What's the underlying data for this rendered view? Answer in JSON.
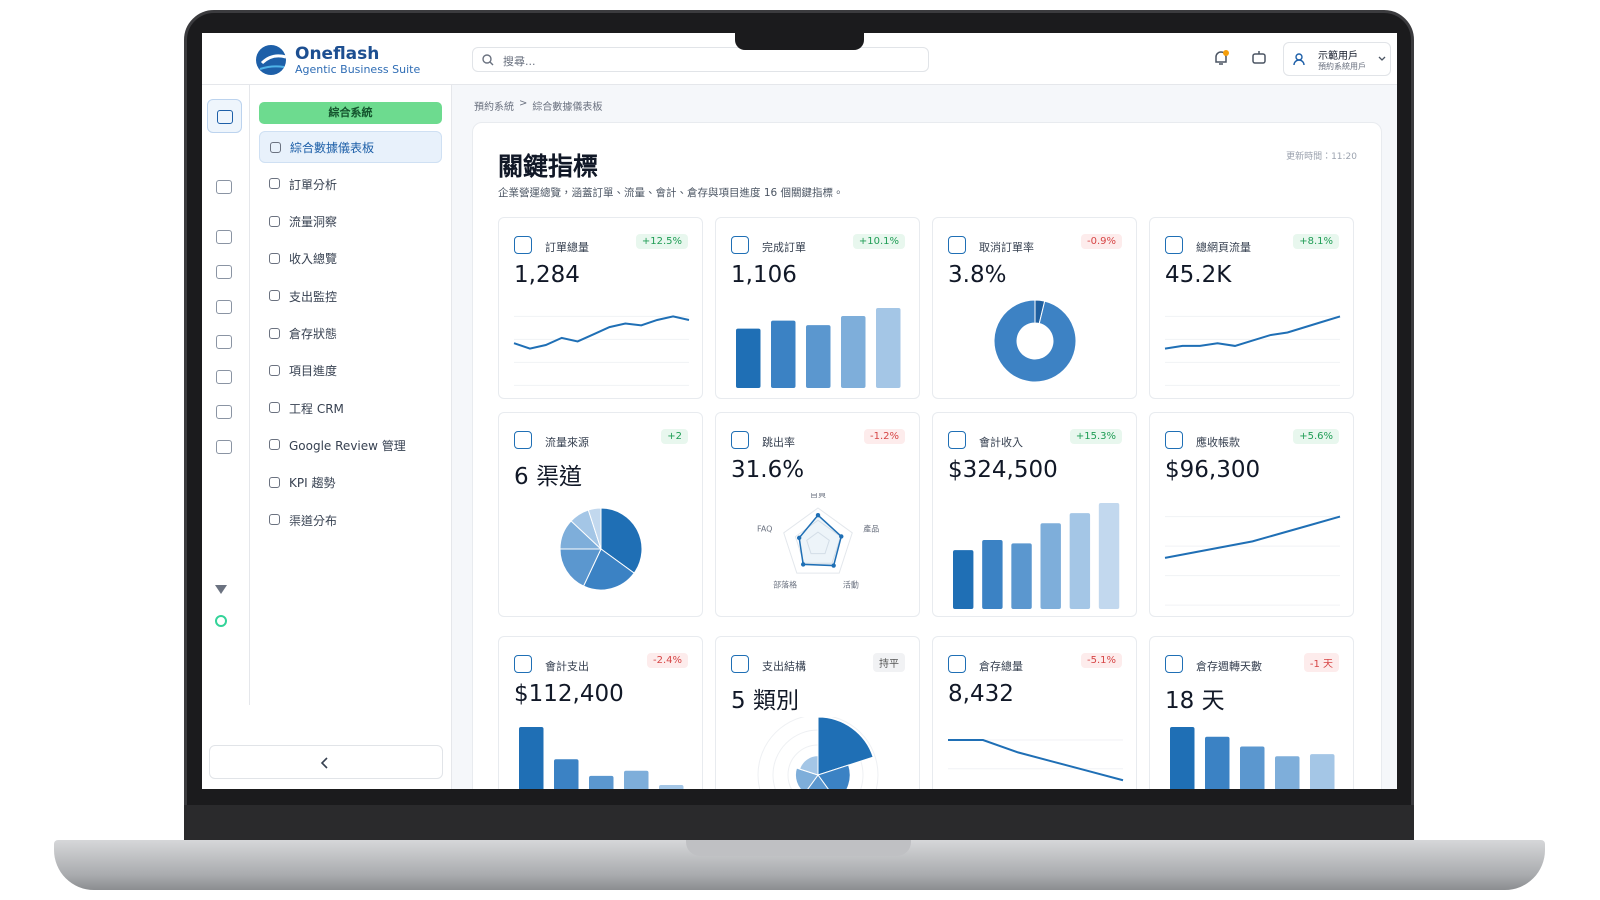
{
  "header": {
    "logo_title": "Oneflash",
    "logo_subtitle": "Agentic Business Suite",
    "search_placeholder": "搜尋...",
    "user_name": "示範用戶",
    "user_role": "預約系統用戶"
  },
  "sidebar": {
    "group": "綜合系統",
    "items": [
      "綜合數據儀表板",
      "訂單分析",
      "流量洞察",
      "收入總覽",
      "支出監控",
      "倉存狀態",
      "項目進度",
      "工程 CRM",
      "Google Review 管理",
      "KPI 趨勢",
      "渠道分布"
    ]
  },
  "breadcrumb": [
    "預約系統",
    ">",
    "綜合數據儀表板"
  ],
  "main": {
    "title": "關鍵指標",
    "subtitle": "企業營運總覽，涵蓋訂單、流量、會計、倉存與項目進度 16 個關鍵指標。",
    "updated": "更新時間：11:20"
  },
  "cards": [
    {
      "label": "訂單總量",
      "change": "+12.5%",
      "value": "1,284",
      "chart": {
        "type": "line",
        "values": [
          30,
          27,
          29,
          33,
          31,
          35,
          39,
          41,
          40,
          43,
          45,
          43
        ]
      }
    },
    {
      "label": "完成訂單",
      "change": "+10.1%",
      "value": "1,106",
      "chart": {
        "type": "bar",
        "values": [
          52,
          59,
          55,
          63,
          70
        ]
      }
    },
    {
      "label": "取消訂單率",
      "change": "-0.9%",
      "value": "3.8%",
      "chart": {
        "type": "donut",
        "values": [
          3.8,
          96.2
        ]
      }
    },
    {
      "label": "總網頁流量",
      "change": "+8.1%",
      "value": "45.2K",
      "chart": {
        "type": "line",
        "values": [
          20,
          21,
          21,
          22,
          21,
          23,
          25,
          26,
          28,
          30,
          32
        ]
      }
    },
    {
      "label": "流量來源",
      "change": "+2",
      "value": "6 渠道",
      "chart": {
        "type": "pie",
        "values": [
          35,
          22,
          18,
          12,
          8,
          5
        ]
      }
    },
    {
      "label": "跳出率",
      "change": "-1.2%",
      "value": "31.6%",
      "chart": {
        "type": "radar",
        "labels": [
          "首頁",
          "產品",
          "活動",
          "部落格",
          "FAQ"
        ],
        "values": [
          80,
          68,
          74,
          70,
          55
        ]
      }
    },
    {
      "label": "會計收入",
      "change": "+15.3%",
      "value": "$324,500",
      "chart": {
        "type": "bar",
        "values": [
          35,
          41,
          39,
          51,
          57,
          63
        ]
      }
    },
    {
      "label": "應收帳款",
      "change": "+5.6%",
      "value": "$96,300",
      "chart": {
        "type": "line",
        "values": [
          40,
          42,
          44,
          46,
          49,
          52,
          55
        ]
      }
    },
    {
      "label": "會計支出",
      "change": "-2.4%",
      "value": "$112,400",
      "chart": {
        "type": "bar",
        "values": [
          80,
          55,
          42,
          46,
          35
        ]
      }
    },
    {
      "label": "支出結構",
      "change": "持平",
      "value": "5 類別",
      "chart": {
        "type": "polar",
        "values": [
          90,
          50,
          40,
          35,
          30
        ]
      }
    },
    {
      "label": "倉存總量",
      "change": "-5.1%",
      "value": "8,432",
      "chart": {
        "type": "line",
        "values": [
          50,
          50,
          49.6,
          49.3,
          49,
          48.7
        ]
      }
    },
    {
      "label": "倉存週轉天數",
      "change": "-1 天",
      "value": "18 天",
      "chart": {
        "type": "bar",
        "values": [
          95,
          86,
          77,
          68,
          70
        ]
      }
    }
  ]
}
